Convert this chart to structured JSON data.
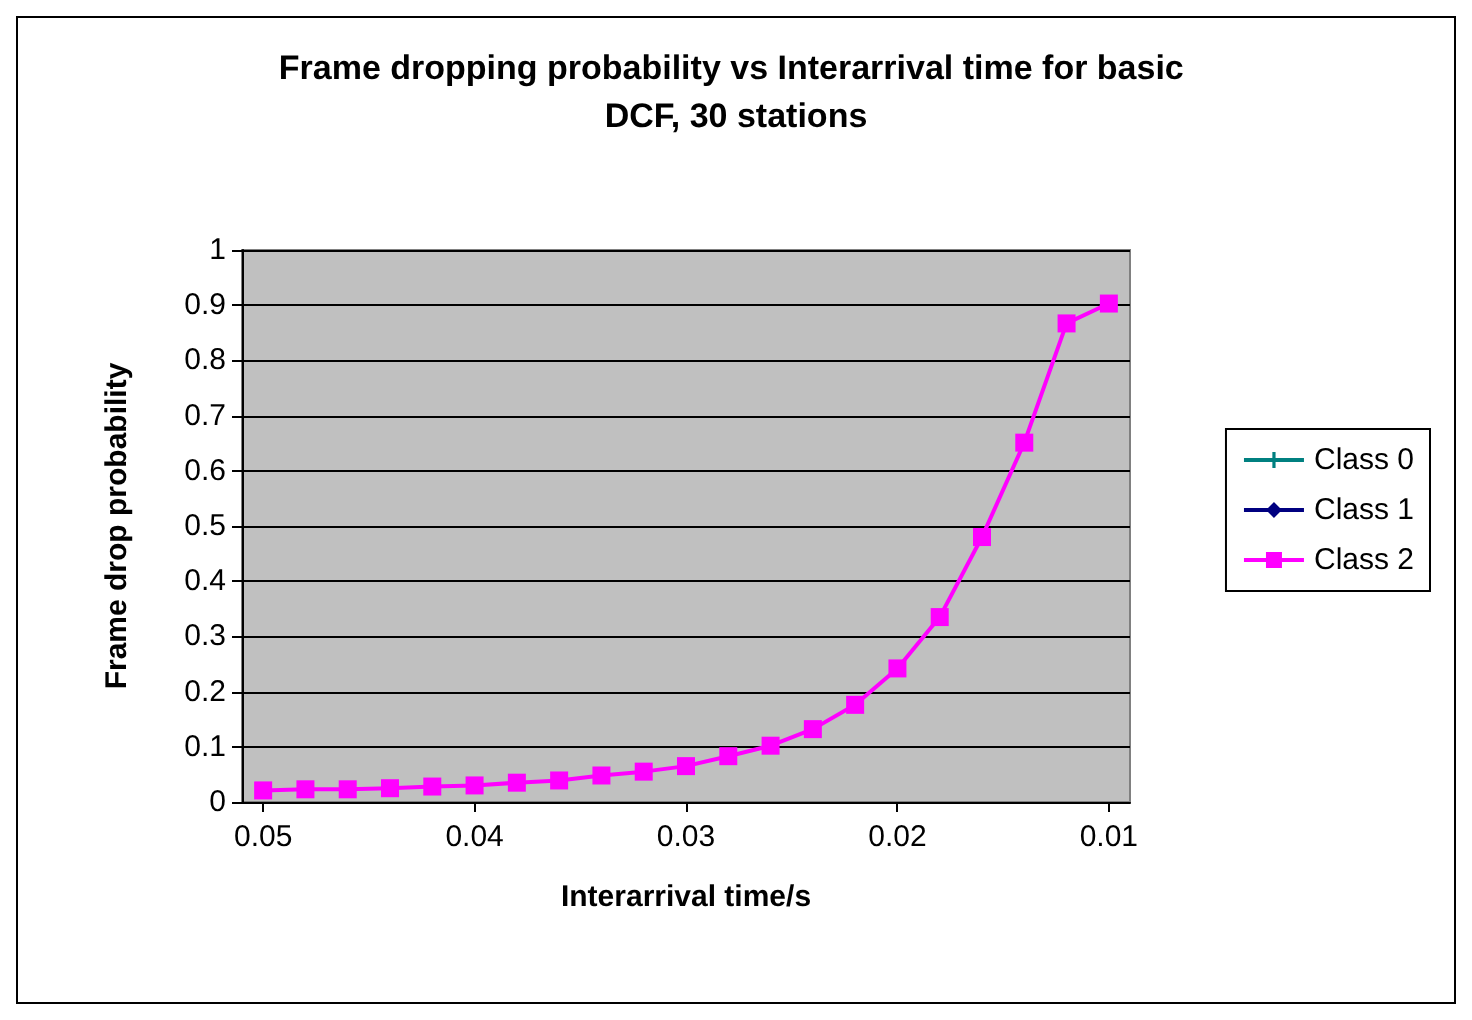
{
  "chart_data": {
    "type": "line",
    "title": "Frame dropping probability vs Interarrival time for basic DCF, 30 stations",
    "xlabel": "Interarrival time/s",
    "ylabel": "Frame drop probability",
    "x": [
      0.05,
      0.048,
      0.046,
      0.044,
      0.042,
      0.04,
      0.038,
      0.036,
      0.034,
      0.032,
      0.03,
      0.028,
      0.026,
      0.024,
      0.022,
      0.02,
      0.018,
      0.016,
      0.014,
      0.012,
      0.01
    ],
    "series": [
      {
        "name": "Class 0",
        "color": "#008080",
        "marker": "cross",
        "values": [
          null,
          null,
          null,
          null,
          null,
          null,
          null,
          null,
          null,
          null,
          null,
          null,
          null,
          null,
          null,
          null,
          null,
          null,
          null,
          null,
          null
        ]
      },
      {
        "name": "Class 1",
        "color": "#000080",
        "marker": "diamond",
        "values": [
          null,
          null,
          null,
          null,
          null,
          null,
          null,
          null,
          null,
          null,
          null,
          null,
          null,
          null,
          null,
          null,
          null,
          null,
          null,
          null,
          null
        ]
      },
      {
        "name": "Class 2",
        "color": "#ff00ff",
        "marker": "square",
        "values": [
          0.021,
          0.023,
          0.023,
          0.025,
          0.028,
          0.03,
          0.035,
          0.039,
          0.048,
          0.055,
          0.065,
          0.083,
          0.102,
          0.132,
          0.176,
          0.242,
          0.335,
          0.48,
          0.651,
          0.867,
          0.903
        ]
      }
    ],
    "xlim": [
      0.051,
      0.009
    ],
    "xticks": [
      0.05,
      0.04,
      0.03,
      0.02,
      0.01
    ],
    "ylim": [
      0,
      1
    ],
    "yticks": [
      0,
      0.1,
      0.2,
      0.3,
      0.4,
      0.5,
      0.6,
      0.7,
      0.8,
      0.9,
      1
    ],
    "grid": "y",
    "legend": "right",
    "line_style": "solid"
  }
}
